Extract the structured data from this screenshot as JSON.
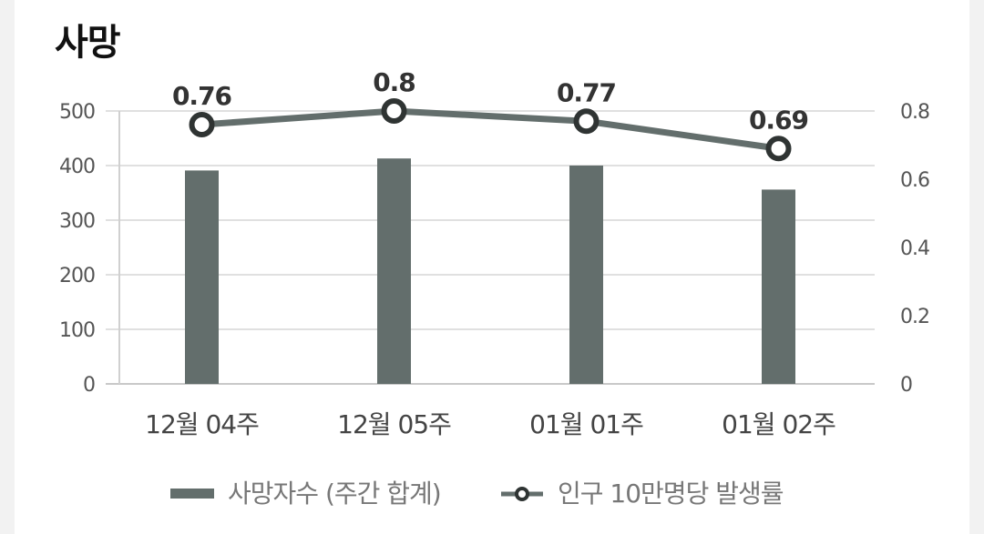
{
  "chart_data": {
    "type": "bar",
    "title": "사망",
    "categories": [
      "12월 04주",
      "12월 05주",
      "01월 01주",
      "01월 02주"
    ],
    "series": [
      {
        "name": "사망자수 (주간 합계)",
        "type": "bar",
        "axis": "left",
        "values": [
          391,
          413,
          400,
          356
        ],
        "color": "#636e6c"
      },
      {
        "name": "인구 10만명당 발생률",
        "type": "line",
        "axis": "right",
        "values": [
          0.76,
          0.8,
          0.77,
          0.69
        ],
        "labels": [
          "0.76",
          "0.8",
          "0.77",
          "0.69"
        ],
        "color": "#636e6c"
      }
    ],
    "y_left": {
      "ylim": [
        0,
        500
      ],
      "ticks": [
        "0",
        "100",
        "200",
        "300",
        "400",
        "500"
      ]
    },
    "y_right": {
      "ylim": [
        0,
        0.8
      ],
      "ticks": [
        "0",
        "0.2",
        "0.4",
        "0.6",
        "0.8"
      ]
    },
    "grid": true,
    "legend": "bottom"
  }
}
